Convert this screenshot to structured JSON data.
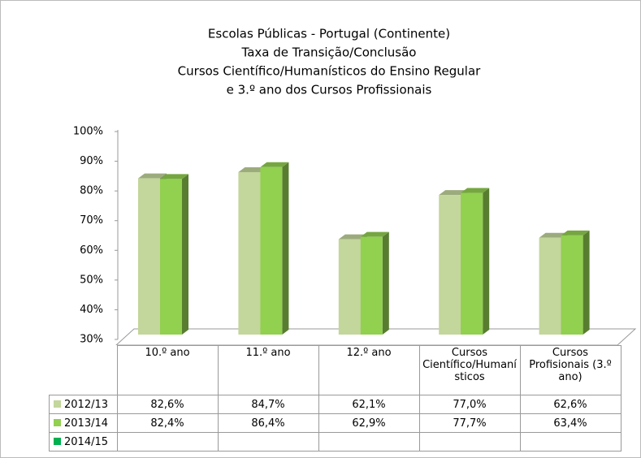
{
  "chart_data": {
    "type": "bar3d",
    "title": [
      "Escolas Públicas - Portugal (Continente)",
      "Taxa de Transição/Conclusão",
      "Cursos Científico/Humanísticos do Ensino Regular",
      "e 3.º ano dos Cursos Profissionais"
    ],
    "categories": [
      "10.º ano",
      "11.º ano",
      "12.º ano",
      "Cursos Científico/Humanísticos",
      "Cursos Profisionais (3.º ano)"
    ],
    "series": [
      {
        "name": "2012/13",
        "color": "#c3d69b",
        "values": [
          82.6,
          84.7,
          62.1,
          77.0,
          62.6
        ],
        "value_labels": [
          "82,6%",
          "84,7%",
          "62,1%",
          "77,0%",
          "62,6%"
        ]
      },
      {
        "name": "2013/14",
        "color": "#92d050",
        "values": [
          82.4,
          86.4,
          62.9,
          77.7,
          63.4
        ],
        "value_labels": [
          "82,4%",
          "86,4%",
          "62,9%",
          "77,7%",
          "63,4%"
        ]
      },
      {
        "name": "2014/15",
        "color": "#00b050",
        "values": [
          null,
          null,
          null,
          null,
          null
        ]
      }
    ],
    "ylim": [
      30,
      100
    ],
    "yticks": [
      {
        "value": 30,
        "label": "30%"
      },
      {
        "value": 40,
        "label": "40%"
      },
      {
        "value": 50,
        "label": "50%"
      },
      {
        "value": 60,
        "label": "60%"
      },
      {
        "value": 70,
        "label": "70%"
      },
      {
        "value": 80,
        "label": "80%"
      },
      {
        "value": 90,
        "label": "90%"
      },
      {
        "value": 100,
        "label": "100%"
      }
    ],
    "grid": false
  }
}
